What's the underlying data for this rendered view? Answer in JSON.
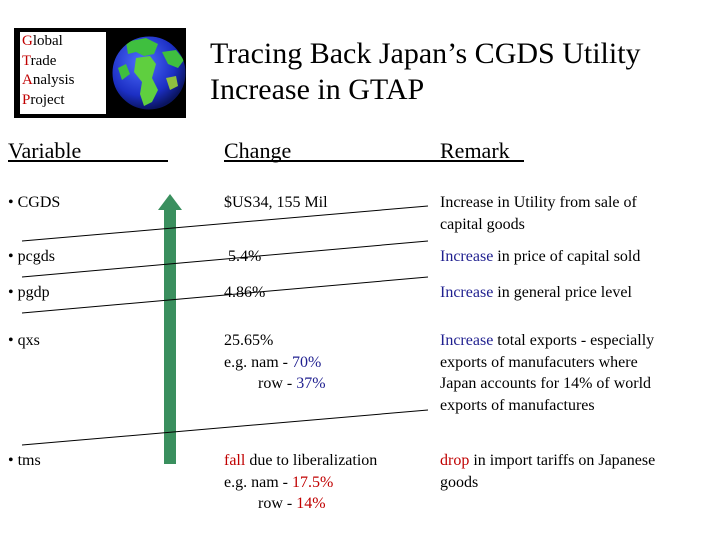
{
  "logo": {
    "lines": [
      {
        "first": "G",
        "rest": "lobal"
      },
      {
        "first": "T",
        "rest": "rade"
      },
      {
        "first": "A",
        "rest": "nalysis"
      },
      {
        "first": "P",
        "rest": "roject"
      }
    ]
  },
  "title": {
    "line1": "Tracing Back Japan’s CGDS Utility",
    "line2": "Increase in GTAP"
  },
  "headers": {
    "variable": "Variable",
    "change": "Change",
    "remark": "Remark"
  },
  "rows": {
    "cgds": {
      "variable": "• CGDS",
      "change": "$US34, 155 Mil",
      "remark_line1": "Increase in Utility from sale of",
      "remark_line2": "capital goods"
    },
    "pcgds": {
      "variable": "• pcgds",
      "change": "5.4%",
      "remark_highlight": "Increase",
      "remark_rest": " in price of capital sold"
    },
    "pgdp": {
      "variable": "• pgdp",
      "change": "4.86%",
      "remark_highlight": "Increase",
      "remark_rest": " in general price level"
    },
    "qxs": {
      "variable": "• qxs",
      "change_line1": "25.65%",
      "change_line2_label": "e.g. nam - ",
      "change_line2_value": "70%",
      "change_line3_label": "row - ",
      "change_line3_value": "37%",
      "remark_highlight": "Increase",
      "remark_line1_rest": " total exports - especially",
      "remark_line2": "exports of manufacuters where",
      "remark_line3": "Japan accounts for 14% of world",
      "remark_line4": "exports of manufactures"
    },
    "tms": {
      "variable": "• tms",
      "change_highlight": "fall",
      "change_line1_rest": " due to liberalization",
      "change_line2_label": "e.g. nam - ",
      "change_line2_value": "17.5%",
      "change_line3_label": "row - ",
      "change_line3_value": "14%",
      "remark_highlight": "drop",
      "remark_line1_rest": " in import tariffs on Japanese",
      "remark_line2": "goods"
    }
  },
  "colors": {
    "arrow": "#3a8f5e",
    "highlight_blue": "#1f1f8f",
    "highlight_red": "#c00000"
  }
}
